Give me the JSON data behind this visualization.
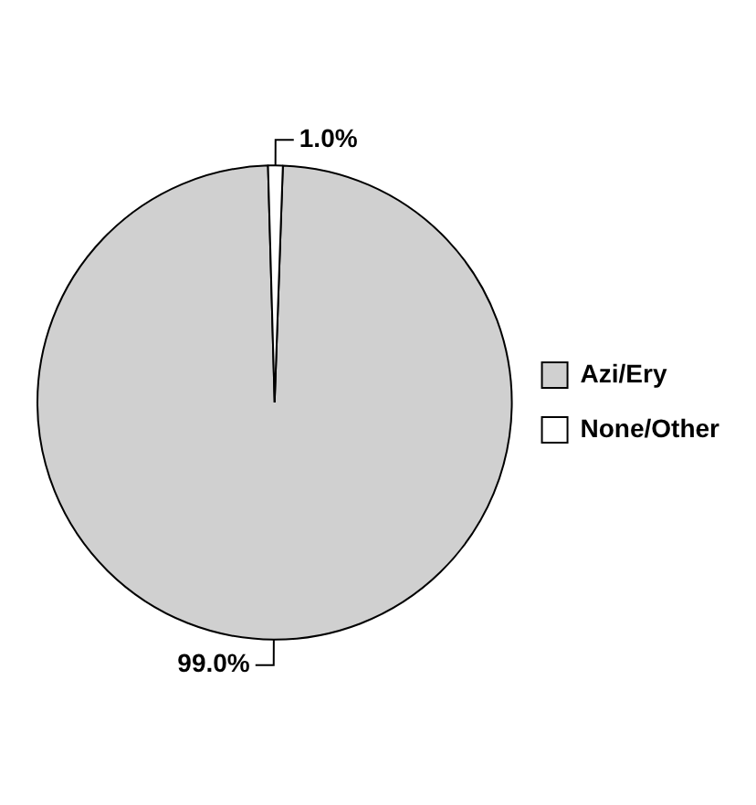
{
  "chart_data": {
    "type": "pie",
    "categories": [
      "Azi/Ery",
      "None/Other"
    ],
    "values": [
      99.0,
      1.0
    ],
    "value_labels": [
      "99.0%",
      "1.0%"
    ],
    "colors": [
      "#d0d0d0",
      "#ffffff"
    ],
    "legend": "right"
  }
}
